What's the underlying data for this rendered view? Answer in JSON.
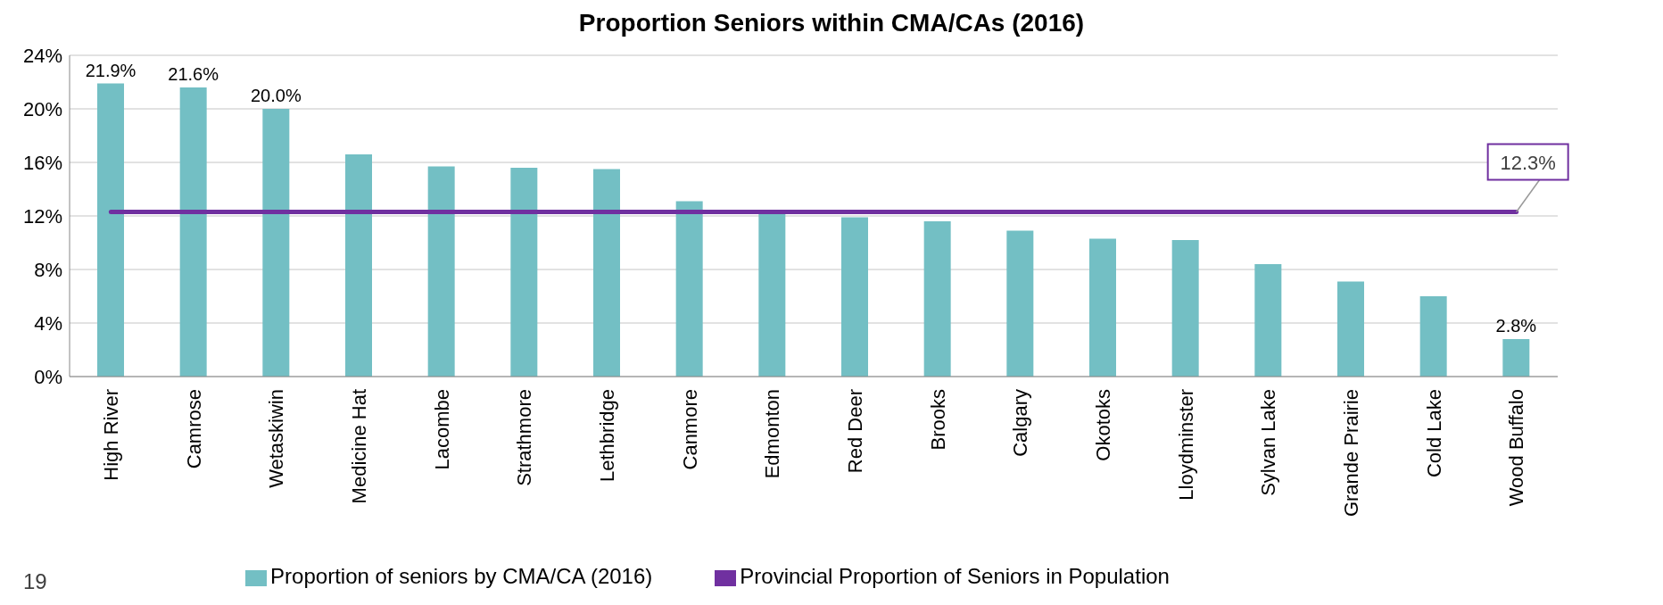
{
  "chart_data": {
    "type": "bar",
    "title": "Proportion Seniors within CMA/CAs (2016)",
    "categories": [
      "High River",
      "Camrose",
      "Wetaskiwin",
      "Medicine Hat",
      "Lacombe",
      "Strathmore",
      "Lethbridge",
      "Canmore",
      "Edmonton",
      "Red Deer",
      "Brooks",
      "Calgary",
      "Okotoks",
      "Lloydminster",
      "Sylvan Lake",
      "Grande Prairie",
      "Cold Lake",
      "Wood Buffalo"
    ],
    "series": [
      {
        "name": "Proportion of seniors by CMA/CA (2016)",
        "color": "#73bfc4",
        "values": [
          21.9,
          21.6,
          20.0,
          16.6,
          15.7,
          15.6,
          15.5,
          13.1,
          12.2,
          11.9,
          11.6,
          10.9,
          10.3,
          10.2,
          8.4,
          7.1,
          6.0,
          2.8
        ],
        "value_labels": [
          "21.9%",
          "21.6%",
          "20.0%",
          null,
          null,
          null,
          null,
          null,
          null,
          null,
          null,
          null,
          null,
          null,
          null,
          null,
          null,
          "2.8%"
        ]
      },
      {
        "name": "Provincial Proportion of Seniors in Population",
        "type": "line",
        "color": "#7030a0",
        "values": [
          12.3,
          12.3,
          12.3,
          12.3,
          12.3,
          12.3,
          12.3,
          12.3,
          12.3,
          12.3,
          12.3,
          12.3,
          12.3,
          12.3,
          12.3,
          12.3,
          12.3,
          12.3
        ],
        "value_labels": [
          null,
          null,
          null,
          null,
          null,
          null,
          null,
          null,
          null,
          null,
          null,
          null,
          null,
          null,
          null,
          null,
          null,
          "12.3%"
        ]
      }
    ],
    "ylim": [
      0,
      24
    ],
    "yticks": [
      {
        "value": 0,
        "label": "0%"
      },
      {
        "value": 4,
        "label": "4%"
      },
      {
        "value": 8,
        "label": "8%"
      },
      {
        "value": 12,
        "label": "12%"
      },
      {
        "value": 16,
        "label": "16%"
      },
      {
        "value": 20,
        "label": "20%"
      },
      {
        "value": 24,
        "label": "24%"
      }
    ],
    "grid": "y",
    "legend": "bottom",
    "marker": "none",
    "line_style": "solid",
    "annotations": [
      "19"
    ]
  }
}
